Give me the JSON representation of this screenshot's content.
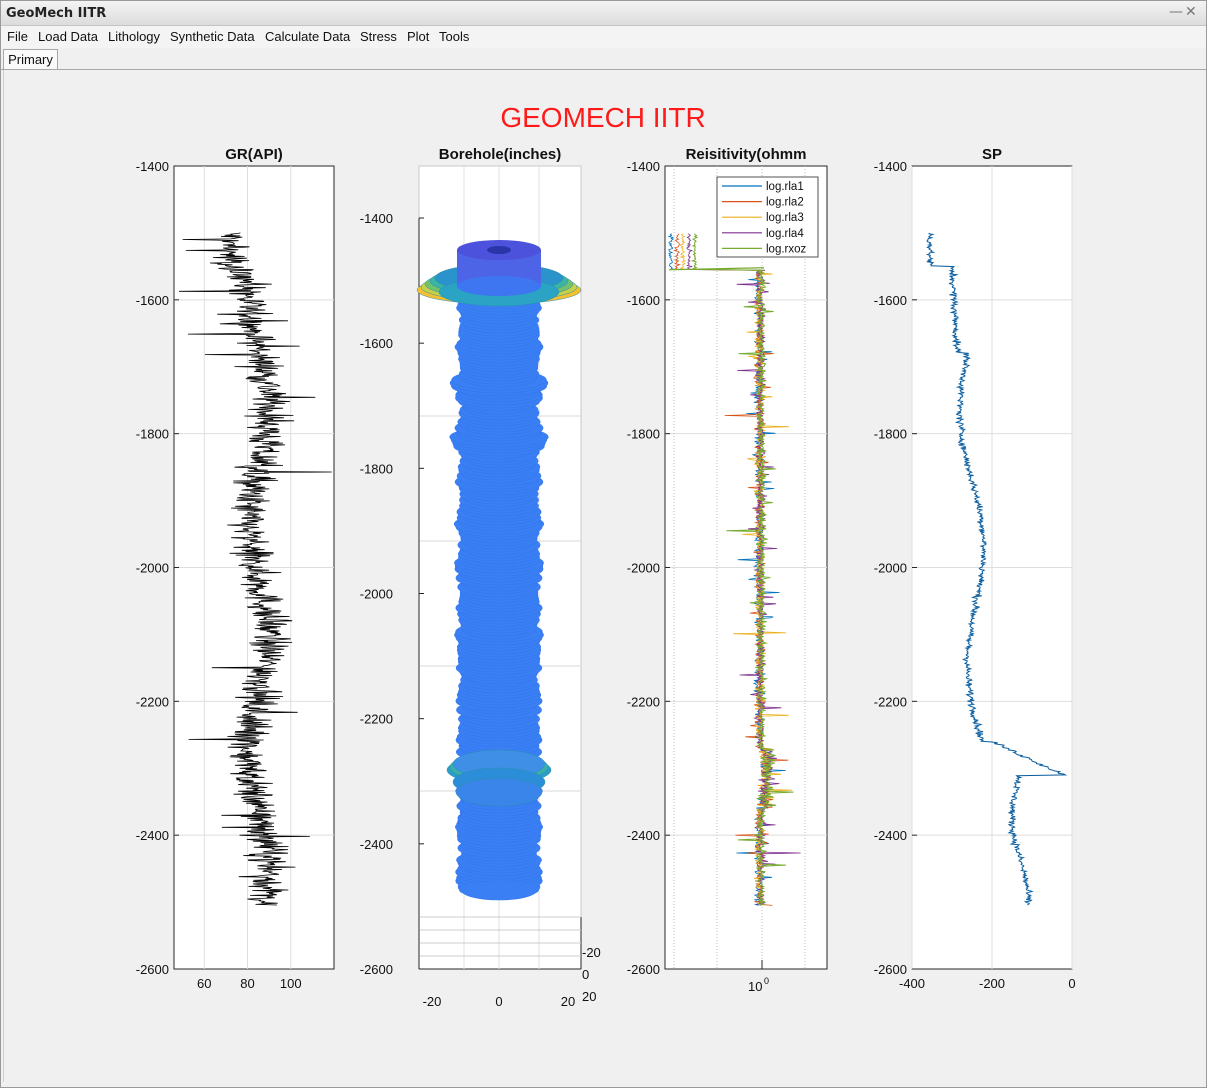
{
  "window": {
    "title": "GeoMech IITR",
    "minimize": "—",
    "close": "✕"
  },
  "menu": [
    "File",
    "Load Data",
    "Lithology",
    "Synthetic Data",
    "Calculate Data",
    "Stress",
    "Plot",
    "Tools"
  ],
  "tab": {
    "label": "Primary"
  },
  "figure_title": "GEOMECH IITR",
  "colors": {
    "title": "#ff1a1a",
    "gr": "#000000",
    "sp": "#0a5ea0",
    "borehole": "#2e7bff",
    "rla1": "#0072bd",
    "rla2": "#d95319",
    "rla3": "#edb120",
    "rla4": "#7e2f8e",
    "rxoz": "#77ac30"
  },
  "chart_data": [
    {
      "type": "line",
      "title": "GR(API)",
      "y_ticks": [
        "-1400",
        "-1600",
        "-1800",
        "-2000",
        "-2200",
        "-2400",
        "-2600"
      ],
      "x_ticks": [
        "60",
        "80",
        "100"
      ],
      "xlim": [
        46,
        120
      ],
      "ylim": [
        -2600,
        -1400
      ],
      "grid": true,
      "series": [
        {
          "depth_range": [
            -2505,
            -1500
          ],
          "approx_mean": 85
        }
      ]
    },
    {
      "type": "surface",
      "title": "Borehole(inches)",
      "y_ticks": [
        "-1400",
        "-1600",
        "-1800",
        "-2000",
        "-2200",
        "-2400",
        "-2600"
      ],
      "x_ticks": [
        "-20",
        "0",
        "20"
      ],
      "z_ticks": [
        "-20",
        "0",
        "20"
      ],
      "depth_range": [
        -2480,
        -1450
      ],
      "enlargements": [
        -1510,
        -2270,
        -2320
      ]
    },
    {
      "type": "line",
      "title": "Reisitivity(ohmm",
      "y_ticks": [
        "-1400",
        "-1600",
        "-1800",
        "-2000",
        "-2200",
        "-2400",
        "-2600"
      ],
      "x_tick_label": "10",
      "x_tick_exponent": "0",
      "x_scale": "log",
      "ylim": [
        -2600,
        -1400
      ],
      "legend": [
        "log.rla1",
        "log.rla2",
        "log.rla3",
        "log.rla4",
        "log.rxoz"
      ],
      "legend_position": "top-right"
    },
    {
      "type": "line",
      "title": "SP",
      "y_ticks": [
        "-1400",
        "-1600",
        "-1800",
        "-2000",
        "-2200",
        "-2400",
        "-2600"
      ],
      "x_ticks": [
        "-400",
        "-200",
        "0"
      ],
      "xlim": [
        -400,
        0
      ],
      "ylim": [
        -2600,
        -1400
      ],
      "grid": true,
      "series": [
        {
          "depth_range": [
            -2505,
            -1500
          ],
          "start_value": -360,
          "end_value": -100
        }
      ]
    }
  ]
}
